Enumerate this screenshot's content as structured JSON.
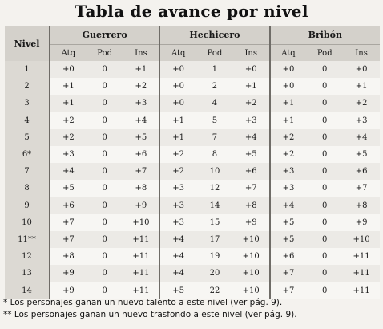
{
  "title": "Tabla de avance por nivel",
  "header": {
    "nivel": "Nivel",
    "groups": [
      "Guerrero",
      "Hechicero",
      "Bribón"
    ],
    "subcols": [
      "Atq",
      "Pod",
      "Ins"
    ]
  },
  "rows": [
    [
      "1",
      "+0",
      "0",
      "+1",
      "+0",
      "1",
      "+0",
      "+0",
      "0",
      "+0"
    ],
    [
      "2",
      "+1",
      "0",
      "+2",
      "+0",
      "2",
      "+1",
      "+0",
      "0",
      "+1"
    ],
    [
      "3",
      "+1",
      "0",
      "+3",
      "+0",
      "4",
      "+2",
      "+1",
      "0",
      "+2"
    ],
    [
      "4",
      "+2",
      "0",
      "+4",
      "+1",
      "5",
      "+3",
      "+1",
      "0",
      "+3"
    ],
    [
      "5",
      "+2",
      "0",
      "+5",
      "+1",
      "7",
      "+4",
      "+2",
      "0",
      "+4"
    ],
    [
      "6*",
      "+3",
      "0",
      "+6",
      "+2",
      "8",
      "+5",
      "+2",
      "0",
      "+5"
    ],
    [
      "7",
      "+4",
      "0",
      "+7",
      "+2",
      "10",
      "+6",
      "+3",
      "0",
      "+6"
    ],
    [
      "8",
      "+5",
      "0",
      "+8",
      "+3",
      "12",
      "+7",
      "+3",
      "0",
      "+7"
    ],
    [
      "9",
      "+6",
      "0",
      "+9",
      "+3",
      "14",
      "+8",
      "+4",
      "0",
      "+8"
    ],
    [
      "10",
      "+7",
      "0",
      "+10",
      "+3",
      "15",
      "+9",
      "+5",
      "0",
      "+9"
    ],
    [
      "11**",
      "+7",
      "0",
      "+11",
      "+4",
      "17",
      "+10",
      "+5",
      "0",
      "+10"
    ],
    [
      "12",
      "+8",
      "0",
      "+11",
      "+4",
      "19",
      "+10",
      "+6",
      "0",
      "+11"
    ],
    [
      "13",
      "+9",
      "0",
      "+11",
      "+4",
      "20",
      "+10",
      "+7",
      "0",
      "+11"
    ],
    [
      "14",
      "+9",
      "0",
      "+11",
      "+5",
      "22",
      "+10",
      "+7",
      "0",
      "+11"
    ]
  ],
  "notes": [
    "* Los personajes ganan un nuevo talento a este nivel (ver pág. 9).",
    "** Los personajes ganan un nuevo trasfondo a este nivel (ver pág. 9)."
  ]
}
